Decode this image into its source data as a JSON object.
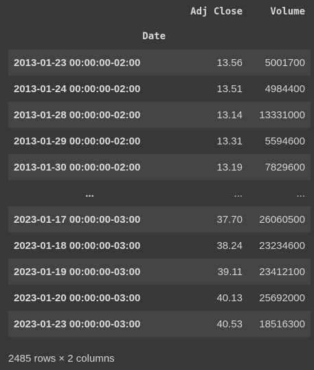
{
  "table": {
    "columns": [
      "Adj Close",
      "Volume"
    ],
    "index_name": "Date",
    "rows": [
      {
        "date": "2013-01-23 00:00:00-02:00",
        "adj_close": "13.56",
        "volume": "5001700"
      },
      {
        "date": "2013-01-24 00:00:00-02:00",
        "adj_close": "13.51",
        "volume": "4984400"
      },
      {
        "date": "2013-01-28 00:00:00-02:00",
        "adj_close": "13.14",
        "volume": "13331000"
      },
      {
        "date": "2013-01-29 00:00:00-02:00",
        "adj_close": "13.31",
        "volume": "5594600"
      },
      {
        "date": "2013-01-30 00:00:00-02:00",
        "adj_close": "13.19",
        "volume": "7829600"
      },
      {
        "date": "...",
        "adj_close": "...",
        "volume": "..."
      },
      {
        "date": "2023-01-17 00:00:00-03:00",
        "adj_close": "37.70",
        "volume": "26060500"
      },
      {
        "date": "2023-01-18 00:00:00-03:00",
        "adj_close": "38.24",
        "volume": "23234600"
      },
      {
        "date": "2023-01-19 00:00:00-03:00",
        "adj_close": "39.11",
        "volume": "23412100"
      },
      {
        "date": "2023-01-20 00:00:00-03:00",
        "adj_close": "40.13",
        "volume": "25692000"
      },
      {
        "date": "2023-01-23 00:00:00-03:00",
        "adj_close": "40.53",
        "volume": "18516300"
      }
    ],
    "footer": "2485 rows × 2 columns"
  },
  "colors": {
    "background": "#383838",
    "row_stripe": "#444444",
    "text": "#d5d5d5"
  }
}
